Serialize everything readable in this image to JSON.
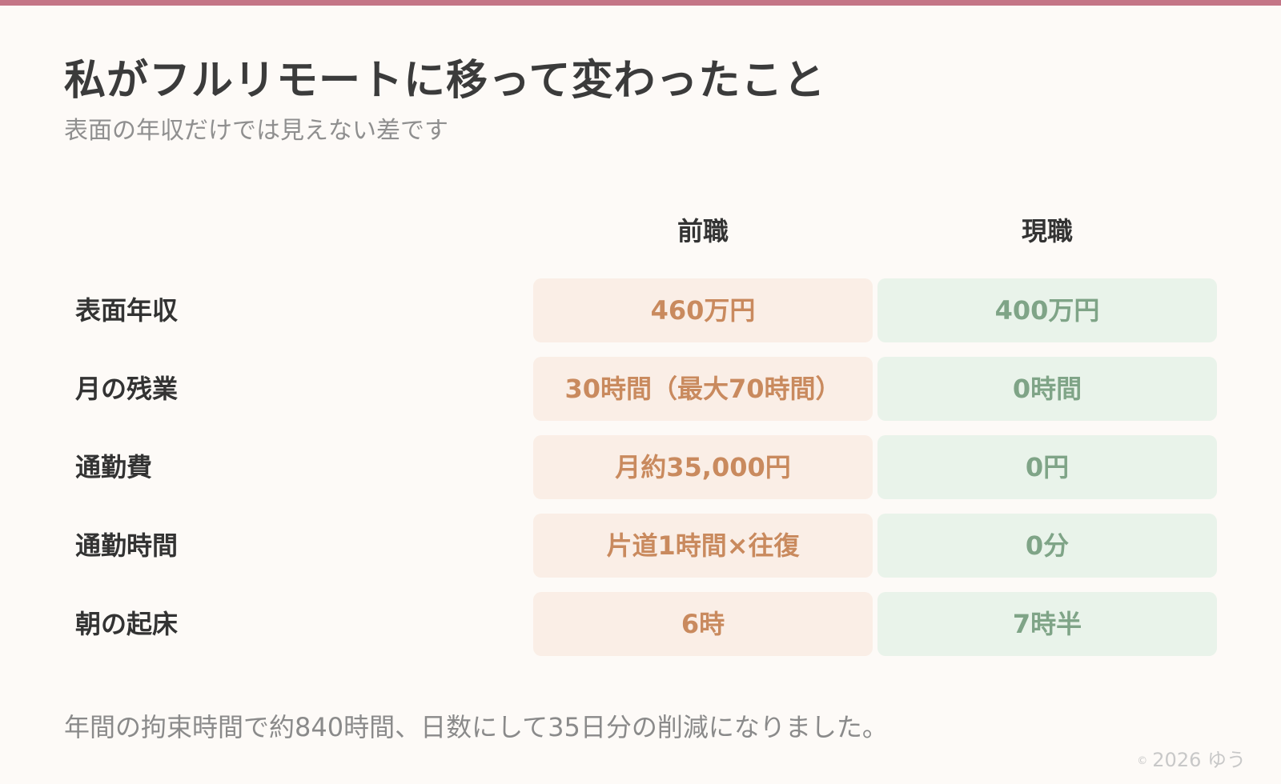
{
  "title": "私がフルリモートに移って変わったこと",
  "subtitle": "表面の年収だけでは見えない差です",
  "columns": {
    "previous": "前職",
    "current": "現職"
  },
  "rows": [
    {
      "label": "表面年収",
      "previous": "460万円",
      "current": "400万円"
    },
    {
      "label": "月の残業",
      "previous": "30時間（最大70時間）",
      "current": "0時間"
    },
    {
      "label": "通勤費",
      "previous": "月約35,000円",
      "current": "0円"
    },
    {
      "label": "通勤時間",
      "previous": "片道1時間×往復",
      "current": "0分"
    },
    {
      "label": "朝の起床",
      "previous": "6時",
      "current": "7時半"
    }
  ],
  "footnote": "年間の拘束時間で約840時間、日数にして35日分の削減になりました。",
  "credit": {
    "mark": "©",
    "text": "2026 ゆう"
  },
  "colors": {
    "accent_bar": "#c47586",
    "previous_bg": "#faeee6",
    "previous_text": "#c98a5e",
    "current_bg": "#e9f3ea",
    "current_text": "#7fa487"
  }
}
